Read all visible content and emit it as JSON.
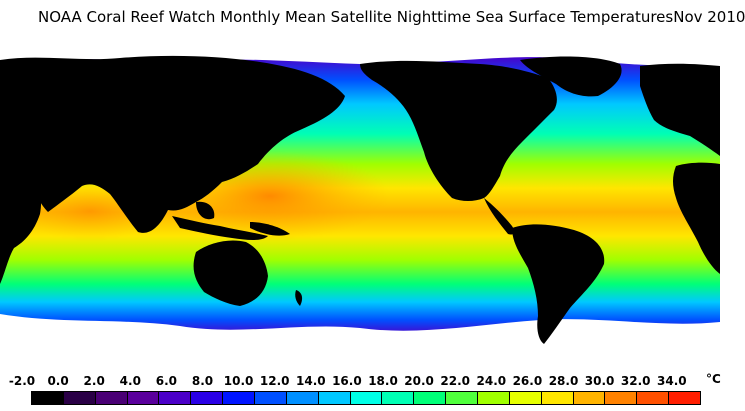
{
  "title": {
    "main": "NOAA Coral Reef Watch Monthly Mean Satellite Nighttime Sea Surface Temperatures",
    "date": "Nov 2010"
  },
  "legend": {
    "unit": "°C",
    "ticks": [
      "-2.0",
      "0.0",
      "2.0",
      "4.0",
      "6.0",
      "8.0",
      "10.0",
      "12.0",
      "14.0",
      "16.0",
      "18.0",
      "20.0",
      "22.0",
      "24.0",
      "26.0",
      "28.0",
      "30.0",
      "32.0",
      "34.0"
    ],
    "colors": [
      "#000000",
      "#2a0046",
      "#4a0075",
      "#5a009c",
      "#4b00c8",
      "#2a00e6",
      "#0014ff",
      "#0050ff",
      "#0090ff",
      "#00c8ff",
      "#00ffe6",
      "#00ffb4",
      "#00ff78",
      "#50ff3c",
      "#a0ff00",
      "#e6ff00",
      "#ffe600",
      "#ffb400",
      "#ff8200",
      "#ff5000",
      "#ff1e00"
    ]
  },
  "colors": {
    "land": "#000000",
    "ice": "#ffffff",
    "cold_ocean": "#5a00b4"
  }
}
